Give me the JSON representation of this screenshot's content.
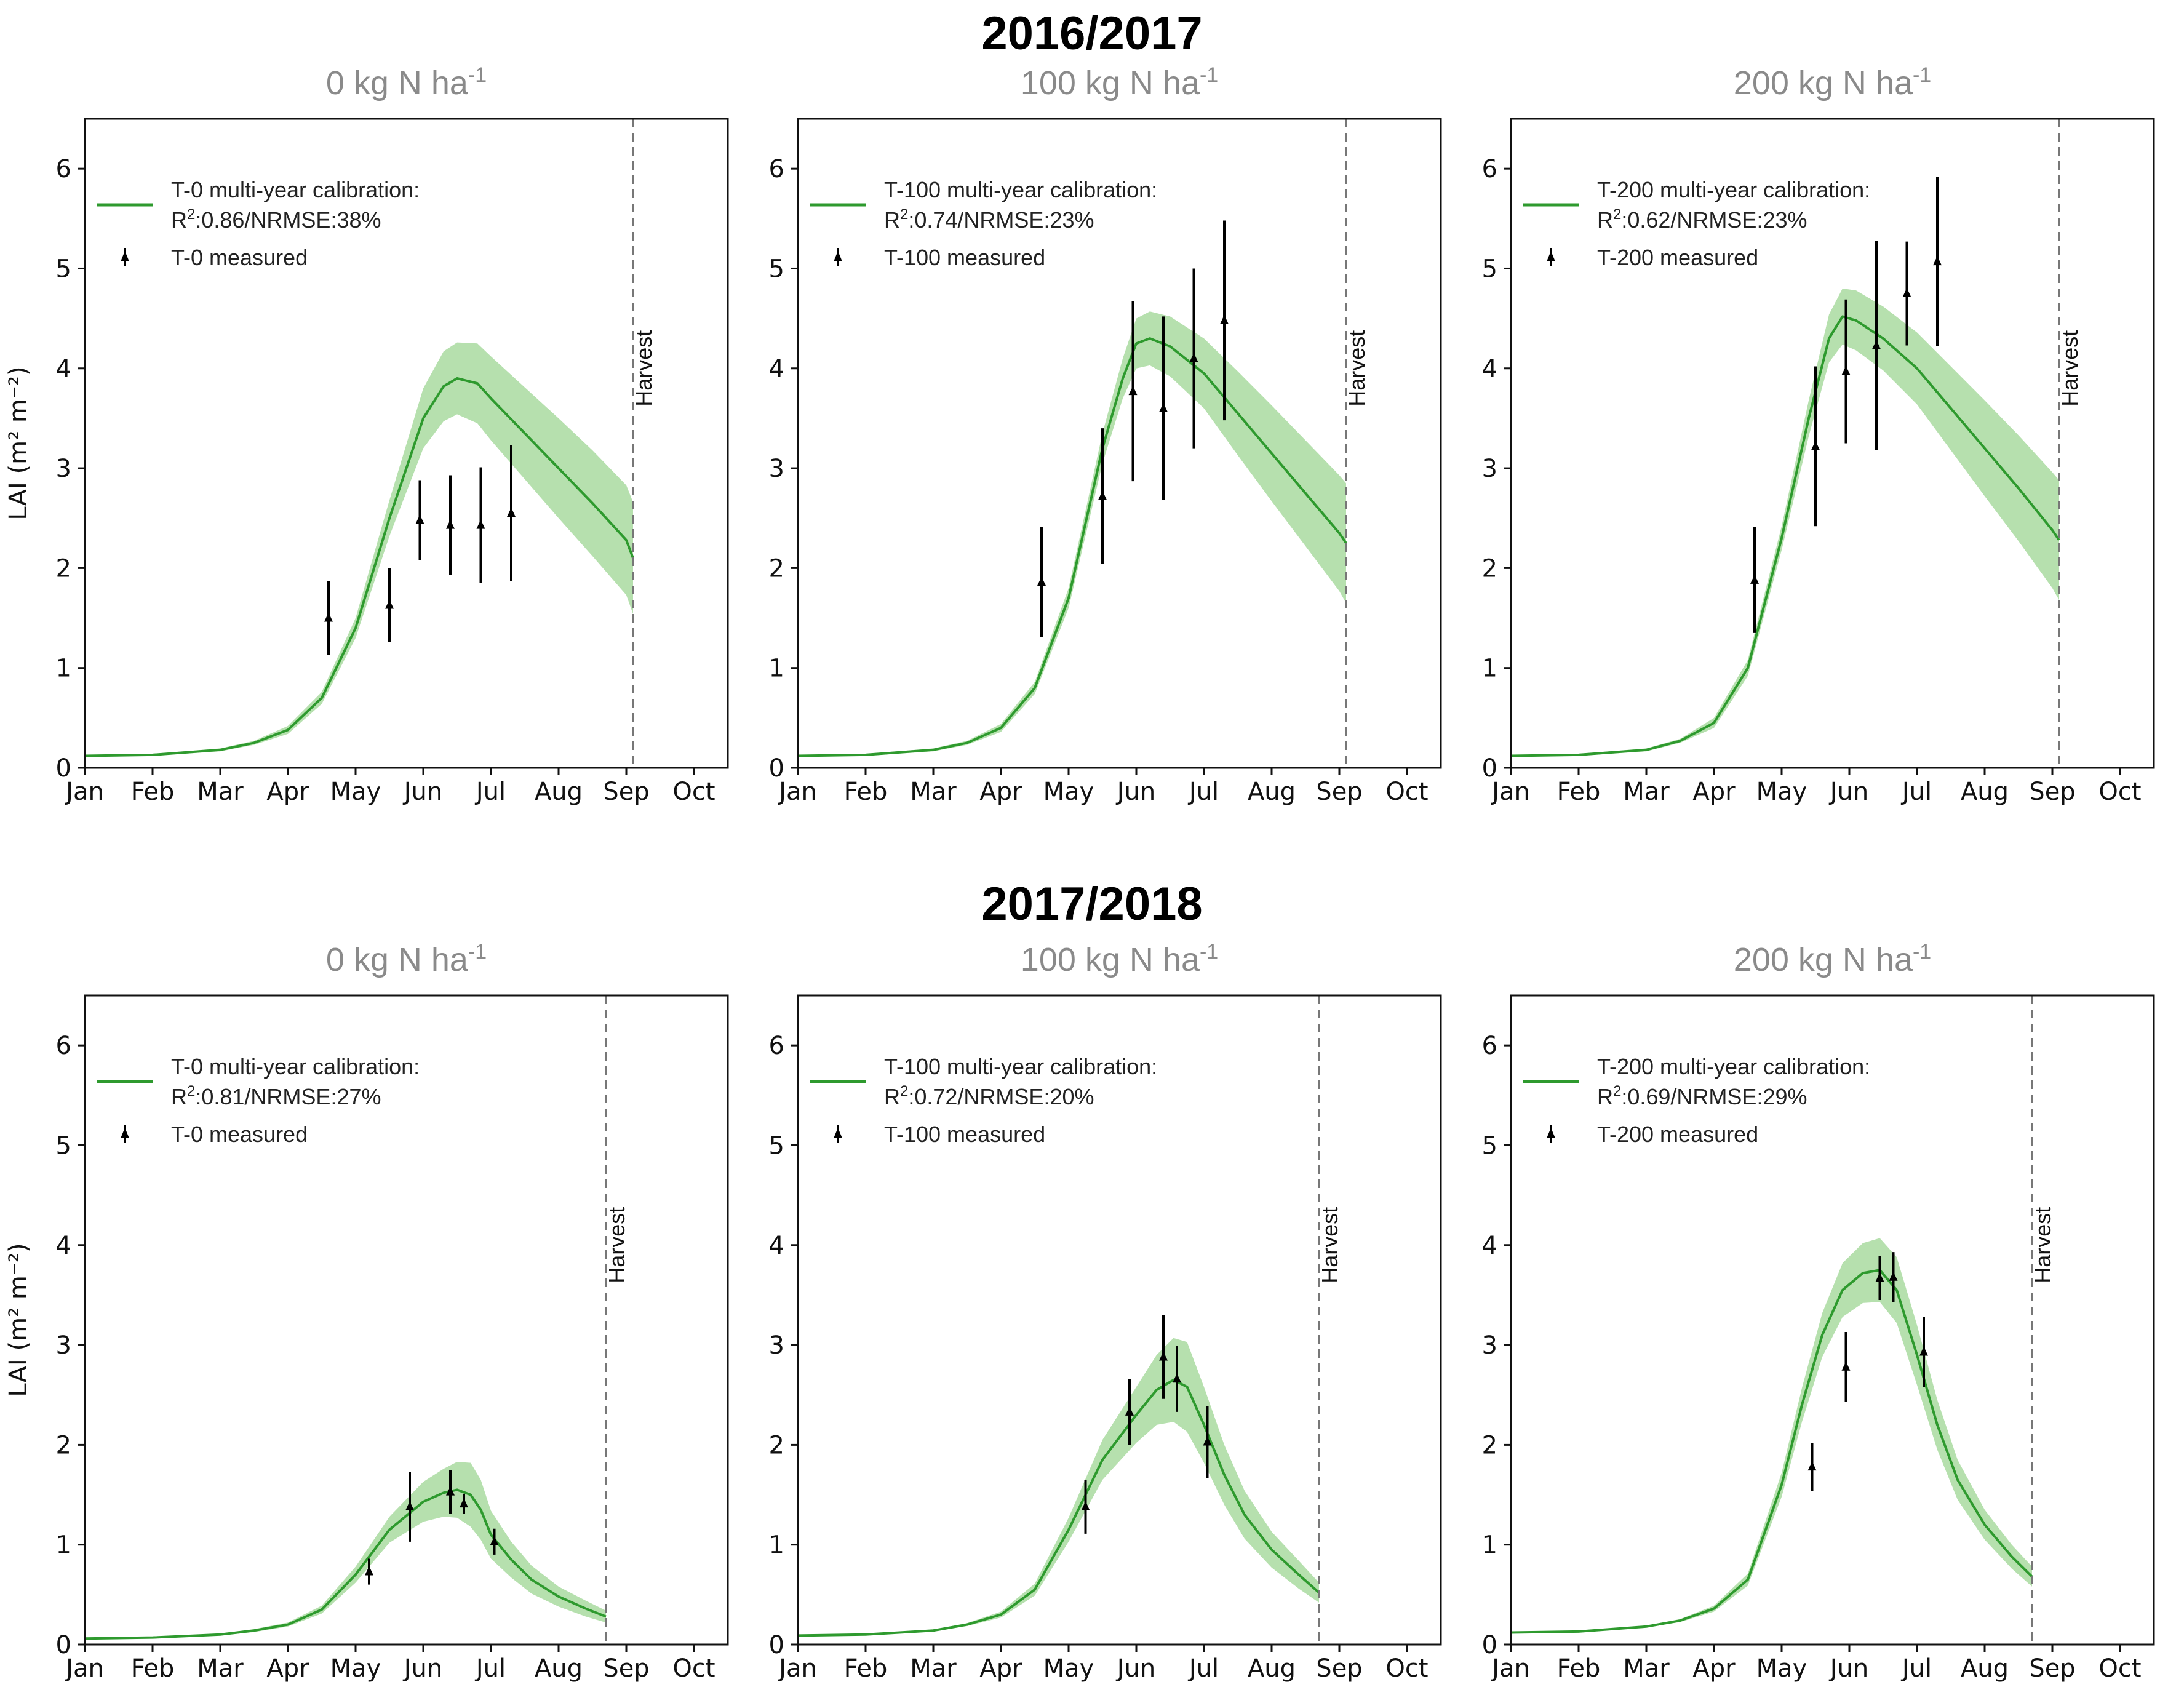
{
  "figure": {
    "row_titles": [
      "2016/2017",
      "2017/2018"
    ],
    "y_axis_label": "LAI (m² m⁻²)",
    "month_labels": [
      "Jan",
      "Feb",
      "Mar",
      "Apr",
      "May",
      "Jun",
      "Jul",
      "Aug",
      "Sep",
      "Oct"
    ],
    "y_tick_labels": [
      "0",
      "1",
      "2",
      "3",
      "4",
      "5",
      "6"
    ],
    "harvest_label": "Harvest",
    "colors": {
      "model_line": "#2e9a2e",
      "band": "#a9dba0",
      "measured": "#000000",
      "harvest_line": "#777777"
    }
  },
  "chart_data": [
    {
      "type": "line",
      "season": "2016/2017",
      "title_main": "0 kg N ha",
      "title_sup": "-1",
      "xlabel": "",
      "ylabel": "LAI (m² m⁻²)",
      "xlim": [
        0,
        9.5
      ],
      "ylim": [
        0,
        6.5
      ],
      "legend": {
        "placement": "top-left",
        "model_label": "T-0 multi-year calibration:",
        "stats_prefix": "R",
        "stats_sup": "2",
        "stats_rest": ":0.86/NRMSE:38%",
        "measured_label": "T-0 measured"
      },
      "harvest_month": 8.1,
      "model": {
        "x": [
          0,
          1,
          2,
          2.5,
          3,
          3.5,
          4,
          4.5,
          5,
          5.3,
          5.5,
          5.8,
          6,
          6.5,
          7,
          7.5,
          8,
          8.1
        ],
        "y": [
          0.12,
          0.13,
          0.18,
          0.25,
          0.38,
          0.7,
          1.4,
          2.5,
          3.5,
          3.82,
          3.9,
          3.85,
          3.7,
          3.35,
          3.0,
          2.65,
          2.28,
          2.1
        ]
      },
      "band_width": [
        0.01,
        0.01,
        0.015,
        0.02,
        0.04,
        0.06,
        0.1,
        0.18,
        0.3,
        0.35,
        0.36,
        0.4,
        0.42,
        0.46,
        0.5,
        0.53,
        0.55,
        0.56
      ],
      "measured": [
        {
          "x": 3.6,
          "y": 1.5,
          "err": 0.37
        },
        {
          "x": 4.5,
          "y": 1.63,
          "err": 0.37
        },
        {
          "x": 4.95,
          "y": 2.48,
          "err": 0.4
        },
        {
          "x": 5.4,
          "y": 2.43,
          "err": 0.5
        },
        {
          "x": 5.85,
          "y": 2.43,
          "err": 0.58
        },
        {
          "x": 6.3,
          "y": 2.55,
          "err": 0.68
        }
      ]
    },
    {
      "type": "line",
      "season": "2016/2017",
      "title_main": "100 kg N ha",
      "title_sup": "-1",
      "xlabel": "",
      "ylabel": "",
      "xlim": [
        0,
        9.5
      ],
      "ylim": [
        0,
        6.5
      ],
      "legend": {
        "placement": "top-left",
        "model_label": "T-100 multi-year calibration:",
        "stats_prefix": "R",
        "stats_sup": "2",
        "stats_rest": ":0.74/NRMSE:23%",
        "measured_label": "T-100 measured"
      },
      "harvest_month": 8.1,
      "model": {
        "x": [
          0,
          1,
          2,
          2.5,
          3,
          3.5,
          4,
          4.5,
          4.8,
          5,
          5.2,
          5.5,
          6,
          6.5,
          7,
          7.5,
          8,
          8.1
        ],
        "y": [
          0.12,
          0.13,
          0.18,
          0.25,
          0.4,
          0.8,
          1.7,
          3.2,
          3.9,
          4.25,
          4.3,
          4.22,
          3.95,
          3.55,
          3.15,
          2.75,
          2.35,
          2.25
        ]
      },
      "band_width": [
        0.01,
        0.01,
        0.015,
        0.02,
        0.04,
        0.06,
        0.1,
        0.15,
        0.2,
        0.25,
        0.27,
        0.3,
        0.35,
        0.42,
        0.48,
        0.53,
        0.58,
        0.6
      ],
      "measured": [
        {
          "x": 3.6,
          "y": 1.86,
          "err": 0.55
        },
        {
          "x": 4.5,
          "y": 2.72,
          "err": 0.68
        },
        {
          "x": 4.95,
          "y": 3.77,
          "err": 0.9
        },
        {
          "x": 5.4,
          "y": 3.6,
          "err": 0.92
        },
        {
          "x": 5.85,
          "y": 4.1,
          "err": 0.9
        },
        {
          "x": 6.3,
          "y": 4.48,
          "err": 1.0
        }
      ]
    },
    {
      "type": "line",
      "season": "2016/2017",
      "title_main": "200 kg N ha",
      "title_sup": "-1",
      "xlabel": "",
      "ylabel": "",
      "xlim": [
        0,
        9.5
      ],
      "ylim": [
        0,
        6.5
      ],
      "legend": {
        "placement": "top-left",
        "model_label": "T-200 multi-year calibration:",
        "stats_prefix": "R",
        "stats_sup": "2",
        "stats_rest": ":0.62/NRMSE:23%",
        "measured_label": "T-200 measured"
      },
      "harvest_month": 8.1,
      "model": {
        "x": [
          0,
          1,
          2,
          2.5,
          3,
          3.5,
          4,
          4.4,
          4.7,
          4.9,
          5.1,
          5.5,
          6,
          6.5,
          7,
          7.5,
          8,
          8.1
        ],
        "y": [
          0.12,
          0.13,
          0.18,
          0.27,
          0.45,
          1.0,
          2.3,
          3.5,
          4.3,
          4.52,
          4.48,
          4.3,
          4.0,
          3.6,
          3.2,
          2.8,
          2.38,
          2.28
        ]
      },
      "band_width": [
        0.01,
        0.01,
        0.015,
        0.02,
        0.05,
        0.08,
        0.12,
        0.18,
        0.24,
        0.28,
        0.3,
        0.32,
        0.36,
        0.42,
        0.48,
        0.53,
        0.58,
        0.6
      ],
      "measured": [
        {
          "x": 3.6,
          "y": 1.88,
          "err": 0.53
        },
        {
          "x": 4.5,
          "y": 3.22,
          "err": 0.8
        },
        {
          "x": 4.95,
          "y": 3.97,
          "err": 0.72
        },
        {
          "x": 5.4,
          "y": 4.23,
          "err": 1.05
        },
        {
          "x": 5.85,
          "y": 4.75,
          "err": 0.52
        },
        {
          "x": 6.3,
          "y": 5.07,
          "err": 0.85
        }
      ]
    },
    {
      "type": "line",
      "season": "2017/2018",
      "title_main": "0 kg N ha",
      "title_sup": "-1",
      "xlabel": "",
      "ylabel": "LAI (m² m⁻²)",
      "xlim": [
        0,
        9.5
      ],
      "ylim": [
        0,
        6.5
      ],
      "legend": {
        "placement": "top-left",
        "model_label": "T-0 multi-year calibration:",
        "stats_prefix": "R",
        "stats_sup": "2",
        "stats_rest": ":0.81/NRMSE:27%",
        "measured_label": "T-0 measured"
      },
      "harvest_month": 7.7,
      "model": {
        "x": [
          0,
          1,
          2,
          2.5,
          3,
          3.5,
          4,
          4.5,
          5,
          5.3,
          5.5,
          5.7,
          5.85,
          6,
          6.3,
          6.6,
          7,
          7.4,
          7.7
        ],
        "y": [
          0.06,
          0.07,
          0.1,
          0.14,
          0.2,
          0.35,
          0.7,
          1.15,
          1.43,
          1.52,
          1.55,
          1.5,
          1.35,
          1.1,
          0.85,
          0.65,
          0.48,
          0.36,
          0.28
        ]
      },
      "band_width": [
        0.005,
        0.005,
        0.01,
        0.015,
        0.02,
        0.04,
        0.08,
        0.13,
        0.2,
        0.24,
        0.28,
        0.32,
        0.3,
        0.24,
        0.18,
        0.14,
        0.1,
        0.08,
        0.06
      ],
      "measured": [
        {
          "x": 4.2,
          "y": 0.73,
          "err": 0.13
        },
        {
          "x": 4.8,
          "y": 1.38,
          "err": 0.35
        },
        {
          "x": 5.4,
          "y": 1.53,
          "err": 0.22
        },
        {
          "x": 5.6,
          "y": 1.41,
          "err": 0.1
        },
        {
          "x": 6.05,
          "y": 1.03,
          "err": 0.13
        }
      ]
    },
    {
      "type": "line",
      "season": "2017/2018",
      "title_main": "100 kg N ha",
      "title_sup": "-1",
      "xlabel": "",
      "ylabel": "",
      "xlim": [
        0,
        9.5
      ],
      "ylim": [
        0,
        6.5
      ],
      "legend": {
        "placement": "top-left",
        "model_label": "T-100 multi-year calibration:",
        "stats_prefix": "R",
        "stats_sup": "2",
        "stats_rest": ":0.72/NRMSE:20%",
        "measured_label": "T-100 measured"
      },
      "harvest_month": 7.7,
      "model": {
        "x": [
          0,
          1,
          2,
          2.5,
          3,
          3.5,
          4,
          4.5,
          5,
          5.3,
          5.55,
          5.75,
          6,
          6.3,
          6.6,
          7,
          7.4,
          7.7
        ],
        "y": [
          0.09,
          0.1,
          0.14,
          0.2,
          0.3,
          0.55,
          1.15,
          1.85,
          2.3,
          2.55,
          2.65,
          2.58,
          2.2,
          1.7,
          1.3,
          0.95,
          0.7,
          0.52
        ]
      },
      "band_width": [
        0.005,
        0.005,
        0.01,
        0.015,
        0.03,
        0.06,
        0.12,
        0.2,
        0.28,
        0.35,
        0.42,
        0.45,
        0.38,
        0.3,
        0.24,
        0.18,
        0.14,
        0.1
      ],
      "measured": [
        {
          "x": 4.25,
          "y": 1.38,
          "err": 0.27
        },
        {
          "x": 4.9,
          "y": 2.33,
          "err": 0.33
        },
        {
          "x": 5.4,
          "y": 2.88,
          "err": 0.42
        },
        {
          "x": 5.6,
          "y": 2.66,
          "err": 0.33
        },
        {
          "x": 6.05,
          "y": 2.03,
          "err": 0.36
        }
      ]
    },
    {
      "type": "line",
      "season": "2017/2018",
      "title_main": "200 kg N ha",
      "title_sup": "-1",
      "xlabel": "",
      "ylabel": "",
      "xlim": [
        0,
        9.5
      ],
      "ylim": [
        0,
        6.5
      ],
      "legend": {
        "placement": "top-left",
        "model_label": "T-200 multi-year calibration:",
        "stats_prefix": "R",
        "stats_sup": "2",
        "stats_rest": ":0.69/NRMSE:29%",
        "measured_label": "T-200 measured"
      },
      "harvest_month": 7.7,
      "model": {
        "x": [
          0,
          1,
          2,
          2.5,
          3,
          3.5,
          4,
          4.3,
          4.6,
          4.9,
          5.2,
          5.45,
          5.7,
          6,
          6.3,
          6.6,
          7,
          7.4,
          7.7
        ],
        "y": [
          0.12,
          0.13,
          0.18,
          0.24,
          0.36,
          0.65,
          1.6,
          2.4,
          3.1,
          3.55,
          3.72,
          3.75,
          3.55,
          2.9,
          2.2,
          1.65,
          1.2,
          0.88,
          0.68
        ]
      },
      "band_width": [
        0.005,
        0.005,
        0.01,
        0.015,
        0.03,
        0.06,
        0.12,
        0.17,
        0.22,
        0.27,
        0.3,
        0.32,
        0.33,
        0.3,
        0.25,
        0.2,
        0.15,
        0.12,
        0.1
      ],
      "measured": [
        {
          "x": 4.45,
          "y": 1.78,
          "err": 0.24
        },
        {
          "x": 4.95,
          "y": 2.78,
          "err": 0.35
        },
        {
          "x": 5.45,
          "y": 3.67,
          "err": 0.22
        },
        {
          "x": 5.65,
          "y": 3.68,
          "err": 0.25
        },
        {
          "x": 6.1,
          "y": 2.93,
          "err": 0.35
        }
      ]
    }
  ]
}
